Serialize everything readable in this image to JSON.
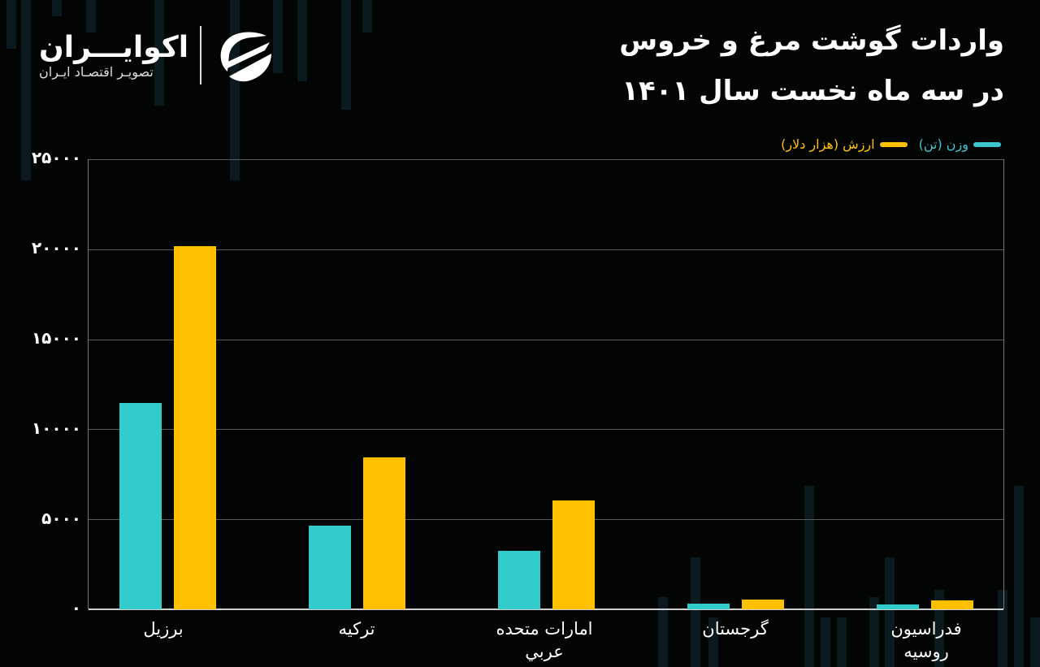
{
  "header": {
    "title_line1": "واردات گوشت مرغ و خروس",
    "title_line2": "در سه ماه نخست سال ۱۴۰۱"
  },
  "logo": {
    "name": "اکوایـــران",
    "tagline": "تصویـر اقتصـاد ایـران"
  },
  "legend": [
    {
      "label": "وزن (تن)",
      "color": "#3ec6cf"
    },
    {
      "label": "ارزش (هزار دلار)",
      "color": "#ffc107"
    }
  ],
  "colors": {
    "weight": "#33cccc",
    "value": "#ffc000",
    "background": "#030404"
  },
  "y_ticks": [
    "۲۵۰۰۰",
    "۲۰۰۰۰",
    "۱۵۰۰۰",
    "۱۰۰۰۰",
    "۵۰۰۰",
    "۰"
  ],
  "chart_data": {
    "type": "bar",
    "title": "واردات گوشت مرغ و خروس در سه ماه نخست سال ۱۴۰۱",
    "categories": [
      "برزيل",
      "ترکيه",
      "امارات متحده عربي",
      "گرجستان",
      "فدراسيون روسيه"
    ],
    "series": [
      {
        "name": "وزن (تن)",
        "color": "#33cccc",
        "values": [
          11450,
          4650,
          3250,
          300,
          260
        ]
      },
      {
        "name": "ارزش (هزار دلار)",
        "color": "#ffc000",
        "values": [
          20150,
          8450,
          6050,
          560,
          480
        ]
      }
    ],
    "xlabel": "",
    "ylabel": "",
    "ylim": [
      0,
      25000
    ],
    "yticks": [
      0,
      5000,
      10000,
      15000,
      20000,
      25000
    ],
    "grid": true,
    "legend_position": "top-right"
  },
  "x_labels": [
    {
      "line1": "برزيل",
      "line2": ""
    },
    {
      "line1": "ترکيه",
      "line2": ""
    },
    {
      "line1": "امارات متحده",
      "line2": "عربي"
    },
    {
      "line1": "گرجستان",
      "line2": ""
    },
    {
      "line1": "فدراسيون",
      "line2": "روسيه"
    }
  ]
}
